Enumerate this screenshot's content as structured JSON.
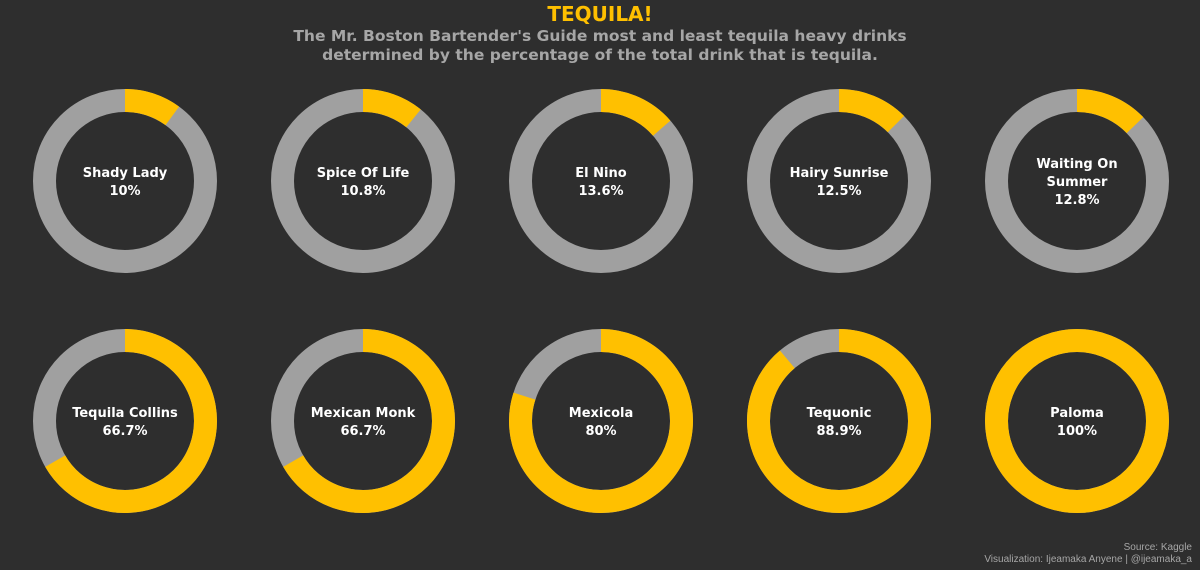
{
  "header": {
    "title": "TEQUILA!",
    "subtitle_line1": "The Mr. Boston Bartender's Guide most and least tequila heavy drinks",
    "subtitle_line2": "determined by the percentage of the total drink that is tequila."
  },
  "footer": {
    "source": "Source: Kaggle",
    "visualization": "Visualization: Ijeamaka Anyene | @ijeamaka_a"
  },
  "colors": {
    "tequila": "#ffc000",
    "rest": "#a0a0a0",
    "background": "#2e2e2e",
    "label": "#ffffff"
  },
  "chart_data": {
    "type": "pie",
    "donut": true,
    "rows": 2,
    "columns": 5,
    "drinks": [
      {
        "name_lines": [
          "Shady Lady"
        ],
        "label": "10%",
        "value": 10
      },
      {
        "name_lines": [
          "Spice Of Life"
        ],
        "label": "10.8%",
        "value": 10.8
      },
      {
        "name_lines": [
          "El Nino"
        ],
        "label": "13.6%",
        "value": 13.6
      },
      {
        "name_lines": [
          "Hairy Sunrise"
        ],
        "label": "12.5%",
        "value": 12.5
      },
      {
        "name_lines": [
          "Waiting On",
          "Summer"
        ],
        "label": "12.8%",
        "value": 12.8
      },
      {
        "name_lines": [
          "Tequila Collins"
        ],
        "label": "66.7%",
        "value": 66.7
      },
      {
        "name_lines": [
          "Mexican Monk"
        ],
        "label": "66.7%",
        "value": 66.7
      },
      {
        "name_lines": [
          "Mexicola"
        ],
        "label": "80%",
        "value": 80
      },
      {
        "name_lines": [
          "Tequonic"
        ],
        "label": "88.9%",
        "value": 88.9
      },
      {
        "name_lines": [
          "Paloma"
        ],
        "label": "100%",
        "value": 100
      }
    ]
  }
}
